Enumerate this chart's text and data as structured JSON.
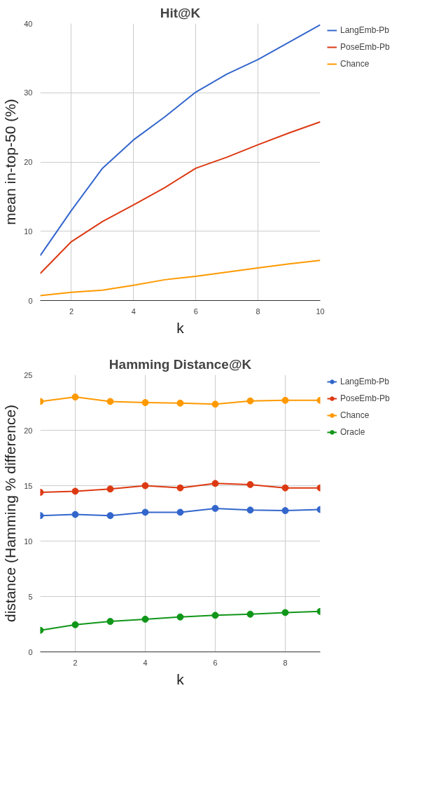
{
  "chart_data": [
    {
      "type": "line",
      "title": "Hit@K",
      "xlabel": "k",
      "ylabel": "mean in-top-50 (%)",
      "x": [
        1,
        2,
        3,
        4,
        5,
        6,
        7,
        8,
        9,
        10
      ],
      "xlim": [
        1,
        10
      ],
      "xticks": [
        2,
        4,
        6,
        8,
        10
      ],
      "ylim": [
        0,
        40
      ],
      "yticks": [
        0,
        10,
        20,
        30,
        40
      ],
      "grid": true,
      "legend": "right",
      "series": [
        {
          "name": "LangEmb-Pb",
          "color": "#3366cc",
          "values": [
            6.5,
            13,
            19.1,
            23.2,
            26.5,
            30.1,
            32.7,
            34.8,
            37.3,
            39.8
          ]
        },
        {
          "name": "PoseEmb-Pb",
          "color": "#dc3912",
          "values": [
            3.9,
            8.5,
            11.4,
            13.8,
            16.3,
            19.1,
            20.7,
            22.5,
            24.2,
            25.8
          ]
        },
        {
          "name": "Chance",
          "color": "#ff9900",
          "values": [
            0.7,
            1.2,
            1.5,
            2.2,
            3.0,
            3.5,
            4.1,
            4.7,
            5.3,
            5.8
          ]
        }
      ]
    },
    {
      "type": "line",
      "title": "Hamming Distance@K",
      "xlabel": "k",
      "ylabel": "distance (Hamming % difference)",
      "x": [
        1,
        2,
        3,
        4,
        5,
        6,
        7,
        8,
        9
      ],
      "xlim": [
        1,
        9
      ],
      "xticks": [
        2,
        4,
        6,
        8
      ],
      "ylim": [
        0,
        25
      ],
      "yticks": [
        0,
        5,
        10,
        15,
        20,
        25
      ],
      "grid": true,
      "legend": "right",
      "marker": "circle",
      "series": [
        {
          "name": "LangEmb-Pb",
          "color": "#3366cc",
          "values": [
            12.3,
            12.4,
            12.3,
            12.6,
            12.6,
            12.95,
            12.8,
            12.75,
            12.85
          ]
        },
        {
          "name": "PoseEmb-Pb",
          "color": "#dc3912",
          "values": [
            14.4,
            14.5,
            14.7,
            15.0,
            14.8,
            15.2,
            15.1,
            14.8,
            14.8
          ]
        },
        {
          "name": "Chance",
          "color": "#ff9900",
          "values": [
            22.6,
            23.0,
            22.6,
            22.5,
            22.45,
            22.35,
            22.65,
            22.7,
            22.7
          ]
        },
        {
          "name": "Oracle",
          "color": "#109618",
          "values": [
            1.95,
            2.45,
            2.75,
            2.95,
            3.15,
            3.3,
            3.4,
            3.55,
            3.65
          ]
        }
      ]
    }
  ]
}
